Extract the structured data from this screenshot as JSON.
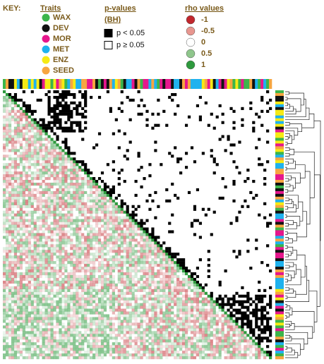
{
  "key_label": "KEY:",
  "traits": {
    "title": "Traits",
    "items": [
      {
        "name": "WAX",
        "color": "#3cb54a"
      },
      {
        "name": "DEV",
        "color": "#111111"
      },
      {
        "name": "MOR",
        "color": "#e6178c"
      },
      {
        "name": "MET",
        "color": "#1fb2ee"
      },
      {
        "name": "ENZ",
        "color": "#f6ea14"
      },
      {
        "name": "SEED",
        "color": "#f7a540"
      }
    ]
  },
  "p_values": {
    "title": "p-values",
    "subtitle": "(BH)",
    "items": [
      {
        "label": "p < 0.05",
        "color": "#000000"
      },
      {
        "label": "p ≥ 0.05",
        "color": "#ffffff"
      }
    ]
  },
  "rho_values": {
    "title": "rho values",
    "items": [
      {
        "label": "-1",
        "color": "#c1272d"
      },
      {
        "label": "-0.5",
        "color": "#e8968f"
      },
      {
        "label": "0",
        "color": "#ffffff"
      },
      {
        "label": "0.5",
        "color": "#8fc68c"
      },
      {
        "label": "1",
        "color": "#2e9a3e"
      }
    ]
  }
}
